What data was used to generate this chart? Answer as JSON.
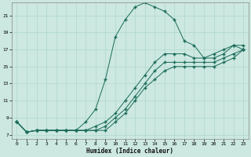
{
  "xlabel": "Humidex (Indice chaleur)",
  "bg_color": "#cce8e0",
  "line_color": "#1a6b5a",
  "grid_color": "#b0d8cc",
  "xlim": [
    -0.5,
    23.5
  ],
  "ylim": [
    6.5,
    22.5
  ],
  "xticks": [
    0,
    1,
    2,
    3,
    4,
    5,
    6,
    7,
    8,
    9,
    10,
    11,
    12,
    13,
    14,
    15,
    16,
    17,
    18,
    19,
    20,
    21,
    22,
    23
  ],
  "yticks": [
    7,
    9,
    11,
    13,
    15,
    17,
    19,
    21
  ],
  "line1_x": [
    0,
    1,
    2,
    3,
    4,
    5,
    6,
    7,
    8,
    9,
    10,
    11,
    12,
    13,
    14,
    15,
    16,
    17,
    18,
    19,
    20,
    21,
    22,
    23
  ],
  "line1_y": [
    8.5,
    7.3,
    7.5,
    7.5,
    7.5,
    7.5,
    7.5,
    8.5,
    10.0,
    13.5,
    18.5,
    20.5,
    22.0,
    22.5,
    22.0,
    21.5,
    20.5,
    18.0,
    17.5,
    16.0,
    16.5,
    17.0,
    17.5,
    17.5
  ],
  "line2_x": [
    0,
    1,
    2,
    3,
    4,
    5,
    6,
    7,
    8,
    9,
    10,
    11,
    12,
    13,
    14,
    15,
    16,
    17,
    18,
    19,
    20,
    21,
    22,
    23
  ],
  "line2_y": [
    8.5,
    7.3,
    7.5,
    7.5,
    7.5,
    7.5,
    7.5,
    7.5,
    8.0,
    8.5,
    9.5,
    11.0,
    12.5,
    14.0,
    15.5,
    16.5,
    16.5,
    16.5,
    16.0,
    16.0,
    16.0,
    16.5,
    17.5,
    17.0
  ],
  "line3_x": [
    0,
    1,
    2,
    3,
    4,
    5,
    6,
    7,
    8,
    9,
    10,
    11,
    12,
    13,
    14,
    15,
    16,
    17,
    18,
    19,
    20,
    21,
    22,
    23
  ],
  "line3_y": [
    8.5,
    7.3,
    7.5,
    7.5,
    7.5,
    7.5,
    7.5,
    7.5,
    7.5,
    8.0,
    9.0,
    10.0,
    11.5,
    13.0,
    14.5,
    15.5,
    15.5,
    15.5,
    15.5,
    15.5,
    15.5,
    16.0,
    16.5,
    17.0
  ],
  "line4_x": [
    0,
    1,
    2,
    3,
    4,
    5,
    6,
    7,
    8,
    9,
    10,
    11,
    12,
    13,
    14,
    15,
    16,
    17,
    18,
    19,
    20,
    21,
    22,
    23
  ],
  "line4_y": [
    8.5,
    7.3,
    7.5,
    7.5,
    7.5,
    7.5,
    7.5,
    7.5,
    7.5,
    7.5,
    8.5,
    9.5,
    11.0,
    12.5,
    13.5,
    14.5,
    15.0,
    15.0,
    15.0,
    15.0,
    15.0,
    15.5,
    16.0,
    17.0
  ]
}
